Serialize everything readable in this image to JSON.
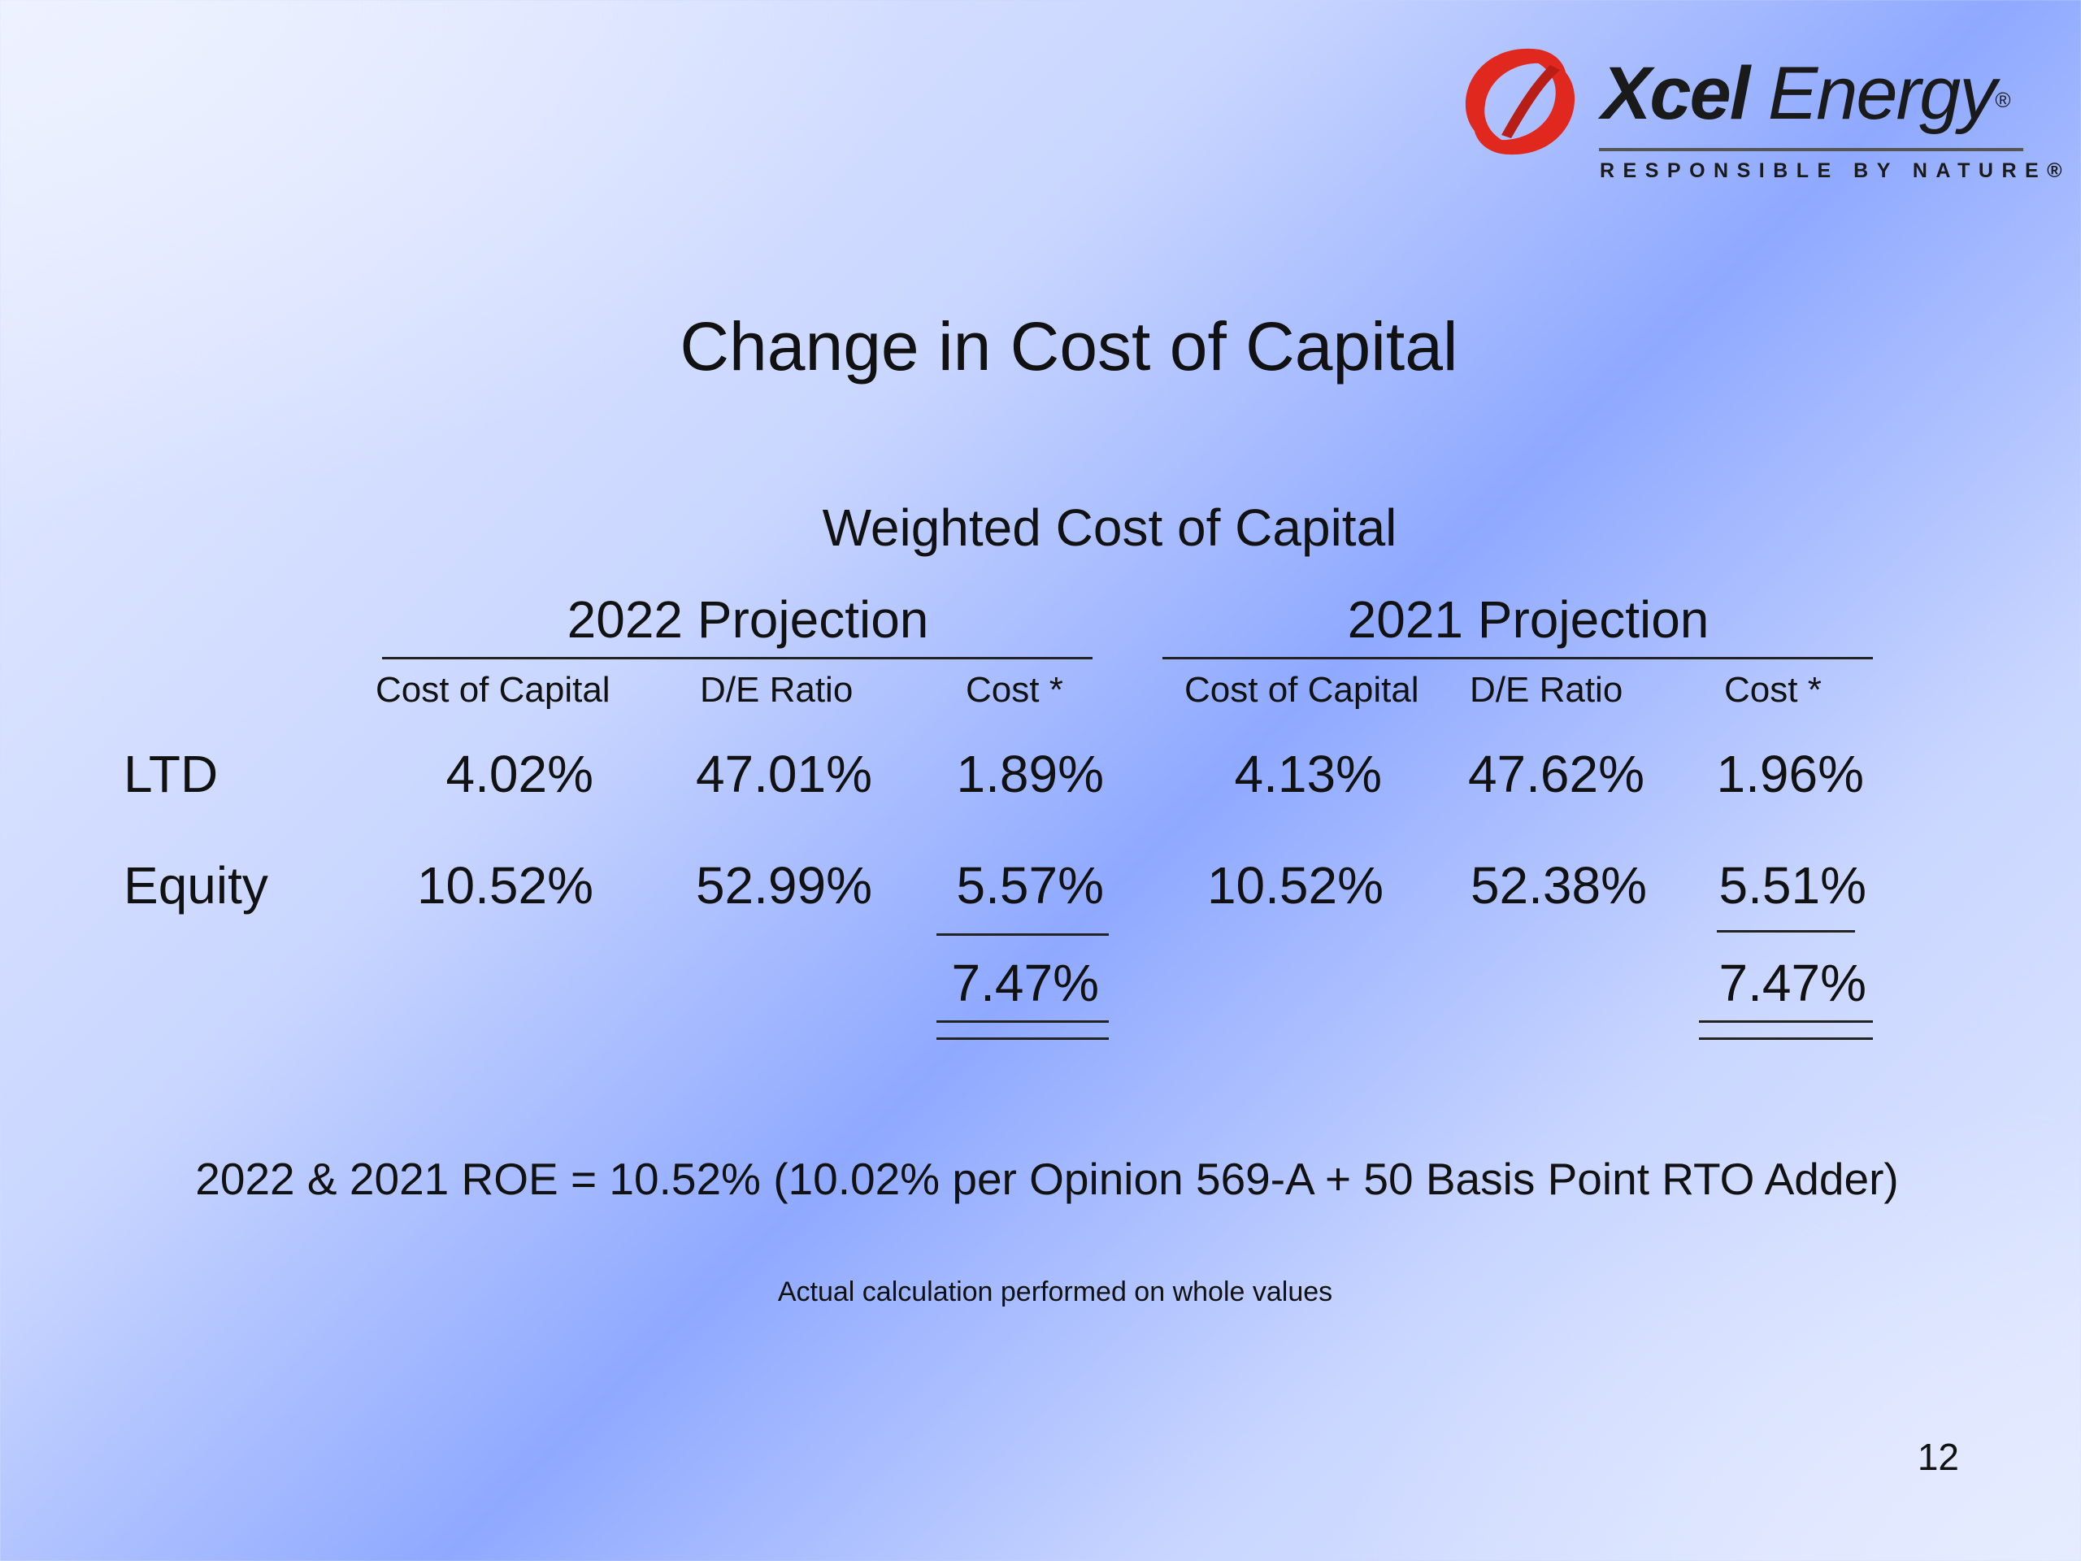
{
  "brand": {
    "wordmark_bold": "Xcel",
    "wordmark_light": "Energy",
    "registered": "®",
    "tagline": "RESPONSIBLE BY NATURE®",
    "accent_color": "#e0281f"
  },
  "slide": {
    "title": "Change in Cost of Capital",
    "subtitle": "Weighted Cost of Capital",
    "page_number": "12"
  },
  "table": {
    "groups": [
      {
        "title": "2022 Projection",
        "headers": [
          "Cost of Capital",
          "D/E Ratio",
          "Cost *"
        ],
        "ltd": [
          "4.02%",
          "47.01%",
          "1.89%"
        ],
        "equity": [
          "10.52%",
          "52.99%",
          "5.57%"
        ],
        "total": "7.47%"
      },
      {
        "title": "2021 Projection",
        "headers": [
          "Cost of Capital",
          "D/E Ratio",
          "Cost *"
        ],
        "ltd": [
          "4.13%",
          "47.62%",
          "1.96%"
        ],
        "equity": [
          "10.52%",
          "52.38%",
          "5.51%"
        ],
        "total": "7.47%"
      }
    ],
    "row_labels": [
      "LTD",
      "Equity"
    ]
  },
  "notes": {
    "roe": "2022 & 2021 ROE = 10.52% (10.02% per Opinion 569-A + 50 Basis Point RTO Adder)",
    "calc": "Actual calculation performed on whole values"
  }
}
